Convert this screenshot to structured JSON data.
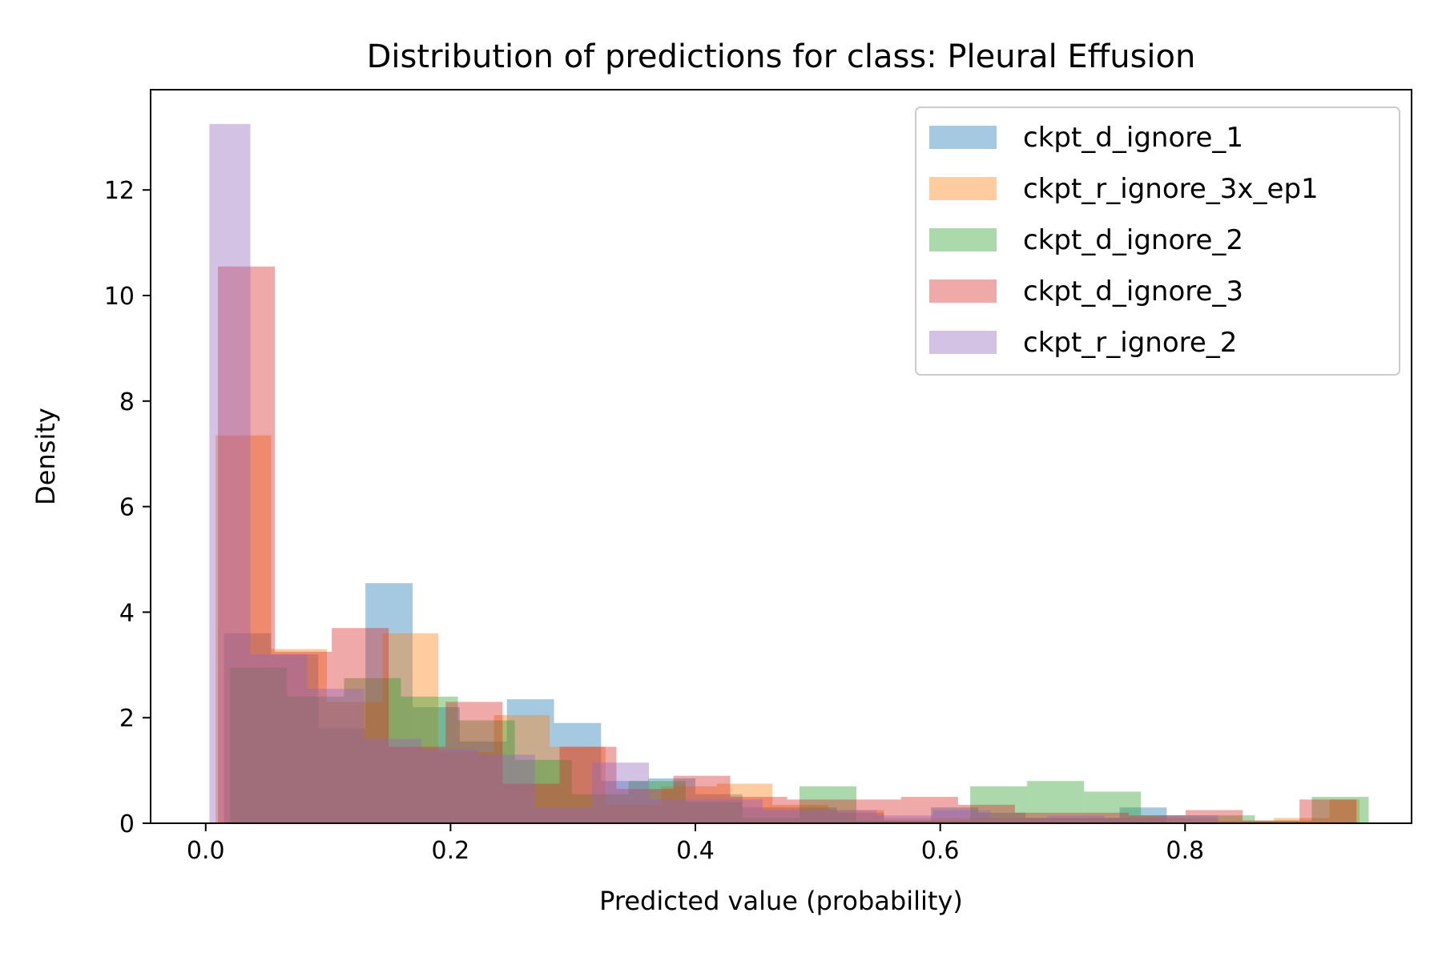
{
  "chart_data": {
    "type": "bar",
    "title": "Distribution of predictions for class: Pleural Effusion",
    "xlabel": "Predicted value (probability)",
    "ylabel": "Density",
    "xlim": [
      -0.045,
      0.985
    ],
    "ylim": [
      0,
      13.9
    ],
    "xticks": [
      0.0,
      0.2,
      0.4,
      0.6,
      0.8
    ],
    "xtick_labels": [
      "0.0",
      "0.2",
      "0.4",
      "0.6",
      "0.8"
    ],
    "yticks": [
      0,
      2,
      4,
      6,
      8,
      10,
      12
    ],
    "ytick_labels": [
      "0",
      "2",
      "4",
      "6",
      "8",
      "10",
      "12"
    ],
    "legend_position": "top-right",
    "series": [
      {
        "name": "ckpt_d_ignore_1",
        "color": "#1f77b4",
        "bins": [
          0.015,
          0.0535,
          0.092,
          0.1305,
          0.169,
          0.2075,
          0.246,
          0.2845,
          0.323,
          0.3615,
          0.4,
          0.4385,
          0.477,
          0.5155,
          0.554,
          0.5925,
          0.631,
          0.6695,
          0.708,
          0.7465,
          0.785
        ],
        "values": [
          3.6,
          3.2,
          1.8,
          4.55,
          2.2,
          1.55,
          2.35,
          1.9,
          0.8,
          0.85,
          0.55,
          0.3,
          0.3,
          0.2,
          0.05,
          0.3,
          0.2,
          0.1,
          0.1,
          0.3
        ]
      },
      {
        "name": "ckpt_r_ignore_3x_ep1",
        "color": "#ff7f0e",
        "bins": [
          0.008,
          0.0535,
          0.099,
          0.1445,
          0.19,
          0.2355,
          0.281,
          0.3265,
          0.372,
          0.4175,
          0.463,
          0.5085,
          0.554,
          0.5995,
          0.645,
          0.6905,
          0.736,
          0.7815,
          0.827,
          0.8725,
          0.918,
          0.9425
        ],
        "values": [
          7.35,
          3.3,
          2.3,
          3.6,
          1.35,
          2.05,
          1.45,
          0.35,
          0.7,
          0.75,
          0.35,
          0.25,
          0.1,
          0.1,
          0.1,
          0.1,
          0.1,
          0.1,
          0.05,
          0.1,
          0.45
        ]
      },
      {
        "name": "ckpt_d_ignore_2",
        "color": "#2ca02c",
        "bins": [
          0.02,
          0.0665,
          0.113,
          0.1595,
          0.206,
          0.2525,
          0.299,
          0.3455,
          0.392,
          0.4385,
          0.485,
          0.5315,
          0.578,
          0.6245,
          0.671,
          0.7175,
          0.764,
          0.8105,
          0.857,
          0.9035,
          0.95
        ],
        "values": [
          2.95,
          2.4,
          2.75,
          2.4,
          1.95,
          1.2,
          0.55,
          0.8,
          0.4,
          0.1,
          0.7,
          0.05,
          0.05,
          0.7,
          0.8,
          0.6,
          0.15,
          0.15,
          0.05,
          0.5
        ]
      },
      {
        "name": "ckpt_d_ignore_3",
        "color": "#d62728",
        "bins": [
          0.01,
          0.0565,
          0.103,
          0.1495,
          0.196,
          0.2425,
          0.289,
          0.3355,
          0.382,
          0.4285,
          0.475,
          0.5215,
          0.568,
          0.6145,
          0.661,
          0.7075,
          0.754,
          0.8005,
          0.847,
          0.8935,
          0.94
        ],
        "values": [
          10.55,
          3.25,
          3.7,
          1.45,
          2.3,
          0.75,
          1.45,
          0.65,
          0.9,
          0.5,
          0.45,
          0.45,
          0.5,
          0.35,
          0.2,
          0.2,
          0.15,
          0.25,
          0.05,
          0.45
        ]
      },
      {
        "name": "ckpt_r_ignore_2",
        "color": "#9467bd",
        "bins": [
          0.003,
          0.0365,
          0.083,
          0.1295,
          0.176,
          0.2225,
          0.269,
          0.3155,
          0.362,
          0.4085,
          0.455,
          0.5015,
          0.548,
          0.5945,
          0.641,
          0.6875,
          0.734,
          0.7805,
          0.827
        ],
        "values": [
          13.25,
          3.2,
          2.55,
          1.6,
          1.4,
          1.3,
          0.3,
          1.15,
          0.45,
          0.45,
          0.25,
          0.25,
          0.15,
          0.25,
          0.1,
          0.15,
          0.1,
          0.15
        ]
      }
    ]
  }
}
